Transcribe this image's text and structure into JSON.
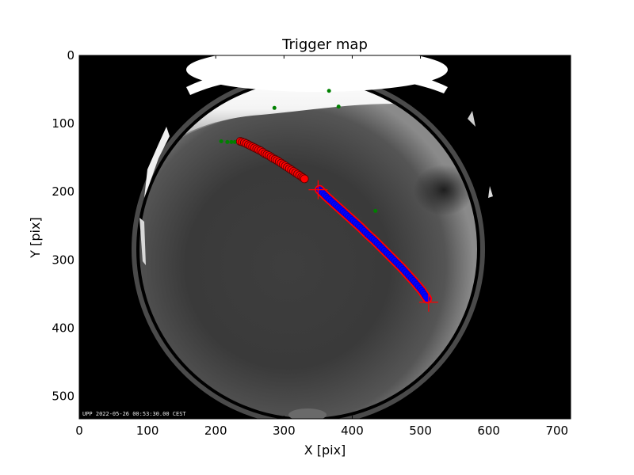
{
  "chart_data": {
    "type": "scatter",
    "title": "Trigger map",
    "xlabel": "X [pix]",
    "ylabel": "Y [pix]",
    "xlim": [
      0,
      720
    ],
    "ylim": [
      533,
      0
    ],
    "y_inverted": true,
    "xticks": [
      0,
      100,
      200,
      300,
      400,
      500,
      600,
      700
    ],
    "yticks": [
      0,
      100,
      200,
      300,
      400,
      500
    ],
    "background": "all-sky fisheye camera image",
    "timestamp": "UPP 2022-05-26 00:53:30.00 CEST",
    "series": [
      {
        "marker": "circle",
        "color": "#008000",
        "points": [
          [
            366,
            52
          ],
          [
            380,
            75
          ],
          [
            286,
            77
          ],
          [
            208,
            126
          ],
          [
            217,
            127
          ],
          [
            223,
            127
          ],
          [
            228,
            127
          ],
          [
            434,
            228
          ]
        ]
      },
      {
        "marker": "circle",
        "color": "#ff0000",
        "points": [
          [
            236,
            126
          ],
          [
            242,
            128
          ],
          [
            248,
            131
          ],
          [
            254,
            134
          ],
          [
            260,
            137
          ],
          [
            266,
            140
          ],
          [
            272,
            144
          ],
          [
            278,
            147
          ],
          [
            284,
            151
          ],
          [
            290,
            154
          ],
          [
            296,
            158
          ],
          [
            302,
            162
          ],
          [
            308,
            166
          ],
          [
            314,
            170
          ],
          [
            320,
            174
          ],
          [
            326,
            178
          ],
          [
            330,
            181
          ]
        ]
      },
      {
        "marker": "circle",
        "color": "#0000ff",
        "points": [
          [
            352,
            197
          ],
          [
            362,
            207
          ],
          [
            372,
            216
          ],
          [
            382,
            225
          ],
          [
            392,
            234
          ],
          [
            402,
            243
          ],
          [
            412,
            252
          ],
          [
            422,
            262
          ],
          [
            432,
            271
          ],
          [
            442,
            281
          ],
          [
            452,
            291
          ],
          [
            462,
            301
          ],
          [
            472,
            311
          ],
          [
            482,
            322
          ],
          [
            492,
            333
          ],
          [
            502,
            345
          ],
          [
            510,
            357
          ]
        ]
      }
    ],
    "endpoints": {
      "marker": "plus",
      "color": "#ff0000",
      "points": [
        [
          350,
          197
        ],
        [
          512,
          362
        ]
      ]
    }
  }
}
